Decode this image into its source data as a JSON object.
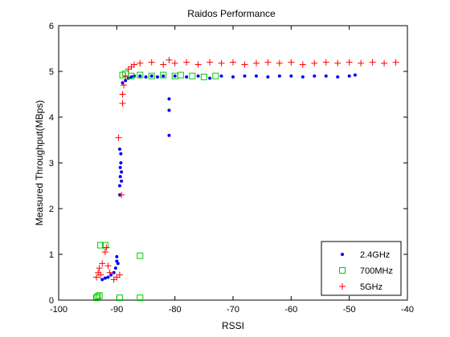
{
  "chart_data": {
    "type": "scatter",
    "title": "Raidos Performance",
    "xlabel": "RSSI",
    "ylabel": "Measured Throughput(MBps)",
    "xlim": [
      -100,
      -40
    ],
    "ylim": [
      0,
      6
    ],
    "xticks": [
      -100,
      -90,
      -80,
      -70,
      -60,
      -50,
      -40
    ],
    "yticks": [
      0,
      1,
      2,
      3,
      4,
      5,
      6
    ],
    "xtick_labels": [
      "-100",
      "-90",
      "-80",
      "-70",
      "-60",
      "-50",
      "-40"
    ],
    "ytick_labels": [
      "0",
      "1",
      "2",
      "3",
      "4",
      "5",
      "6"
    ],
    "grid": false,
    "legend_position": "bottom-right",
    "series": [
      {
        "name": "2.4GHz",
        "marker": "dot",
        "color": "#0000ff",
        "points": [
          [
            -92.5,
            0.45
          ],
          [
            -92.0,
            0.48
          ],
          [
            -91.5,
            0.5
          ],
          [
            -91.0,
            0.55
          ],
          [
            -90.5,
            0.6
          ],
          [
            -90.2,
            0.7
          ],
          [
            -90.0,
            0.85
          ],
          [
            -90.0,
            0.95
          ],
          [
            -89.8,
            0.8
          ],
          [
            -89.5,
            2.3
          ],
          [
            -89.5,
            2.5
          ],
          [
            -89.4,
            2.7
          ],
          [
            -89.4,
            2.9
          ],
          [
            -89.3,
            3.0
          ],
          [
            -89.3,
            3.2
          ],
          [
            -89.2,
            2.6
          ],
          [
            -89.2,
            2.8
          ],
          [
            -89.5,
            3.3
          ],
          [
            -89.0,
            4.75
          ],
          [
            -88.5,
            4.8
          ],
          [
            -88.0,
            4.85
          ],
          [
            -87.5,
            4.88
          ],
          [
            -87.0,
            4.9
          ],
          [
            -86.0,
            4.9
          ],
          [
            -85.0,
            4.88
          ],
          [
            -84.0,
            4.9
          ],
          [
            -83.0,
            4.88
          ],
          [
            -82.0,
            4.9
          ],
          [
            -81.0,
            4.4
          ],
          [
            -81.0,
            4.15
          ],
          [
            -81.0,
            3.6
          ],
          [
            -80.0,
            4.9
          ],
          [
            -78.0,
            4.88
          ],
          [
            -76.0,
            4.9
          ],
          [
            -74.0,
            4.85
          ],
          [
            -72.0,
            4.9
          ],
          [
            -70.0,
            4.88
          ],
          [
            -68.0,
            4.9
          ],
          [
            -66.0,
            4.9
          ],
          [
            -64.0,
            4.88
          ],
          [
            -62.0,
            4.9
          ],
          [
            -60.0,
            4.9
          ],
          [
            -58.0,
            4.88
          ],
          [
            -56.0,
            4.9
          ],
          [
            -54.0,
            4.9
          ],
          [
            -52.0,
            4.88
          ],
          [
            -50.0,
            4.9
          ],
          [
            -49.0,
            4.92
          ]
        ]
      },
      {
        "name": "700MHz",
        "marker": "square",
        "color": "#00cc00",
        "points": [
          [
            -93.5,
            0.05
          ],
          [
            -93.3,
            0.08
          ],
          [
            -93.0,
            0.1
          ],
          [
            -92.8,
            1.2
          ],
          [
            -92.0,
            1.2
          ],
          [
            -89.5,
            0.05
          ],
          [
            -86.0,
            0.97
          ],
          [
            -86.0,
            0.05
          ],
          [
            -89.0,
            4.92
          ],
          [
            -88.5,
            4.95
          ],
          [
            -87.5,
            4.9
          ],
          [
            -86.0,
            4.92
          ],
          [
            -84.0,
            4.9
          ],
          [
            -82.0,
            4.92
          ],
          [
            -80.0,
            4.9
          ],
          [
            -79.0,
            4.92
          ],
          [
            -77.0,
            4.9
          ],
          [
            -75.0,
            4.88
          ],
          [
            -73.0,
            4.9
          ]
        ]
      },
      {
        "name": "5GHz",
        "marker": "plus",
        "color": "#ff0000",
        "points": [
          [
            -93.5,
            0.5
          ],
          [
            -93.2,
            0.6
          ],
          [
            -93.0,
            0.7
          ],
          [
            -92.8,
            0.55
          ],
          [
            -92.5,
            0.8
          ],
          [
            -92.0,
            1.05
          ],
          [
            -91.8,
            1.15
          ],
          [
            -91.5,
            0.75
          ],
          [
            -91.2,
            0.6
          ],
          [
            -90.5,
            0.45
          ],
          [
            -90.0,
            0.5
          ],
          [
            -89.5,
            0.55
          ],
          [
            -89.7,
            3.55
          ],
          [
            -89.2,
            2.3
          ],
          [
            -89.0,
            4.3
          ],
          [
            -89.0,
            4.5
          ],
          [
            -88.8,
            4.7
          ],
          [
            -88.5,
            4.9
          ],
          [
            -88.0,
            5.05
          ],
          [
            -87.5,
            5.1
          ],
          [
            -87.0,
            5.15
          ],
          [
            -86.0,
            5.18
          ],
          [
            -84.0,
            5.2
          ],
          [
            -82.0,
            5.15
          ],
          [
            -81.0,
            5.25
          ],
          [
            -80.0,
            5.18
          ],
          [
            -78.0,
            5.2
          ],
          [
            -76.0,
            5.15
          ],
          [
            -74.0,
            5.2
          ],
          [
            -72.0,
            5.18
          ],
          [
            -70.0,
            5.2
          ],
          [
            -68.0,
            5.15
          ],
          [
            -66.0,
            5.18
          ],
          [
            -64.0,
            5.2
          ],
          [
            -62.0,
            5.18
          ],
          [
            -60.0,
            5.2
          ],
          [
            -58.0,
            5.15
          ],
          [
            -56.0,
            5.18
          ],
          [
            -54.0,
            5.2
          ],
          [
            -52.0,
            5.18
          ],
          [
            -50.0,
            5.2
          ],
          [
            -48.0,
            5.18
          ],
          [
            -46.0,
            5.2
          ],
          [
            -44.0,
            5.18
          ],
          [
            -42.0,
            5.2
          ]
        ]
      }
    ]
  }
}
